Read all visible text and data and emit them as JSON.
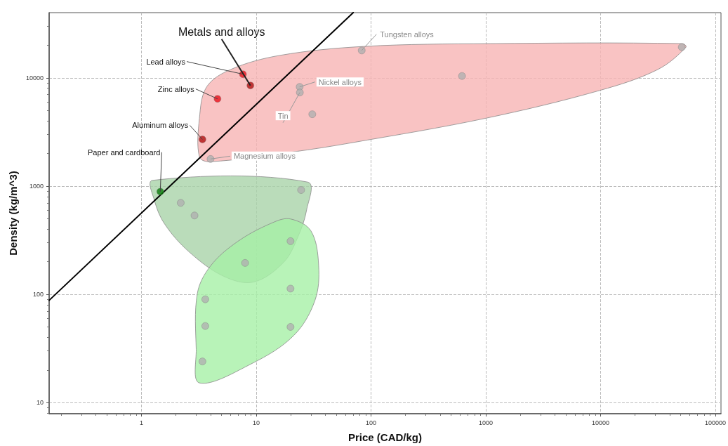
{
  "chart_data": {
    "type": "scatter",
    "xlabel": "Price (CAD/kg)",
    "ylabel": "Density (kg/m^3)",
    "log": "xy",
    "grid": true,
    "xlim": [
      0.157,
      112000
    ],
    "xticks": [
      1,
      10,
      100,
      1000,
      10000,
      100000
    ],
    "ylim": [
      7.9,
      40000
    ],
    "yticks": [
      10,
      100,
      1000,
      10000
    ],
    "series": [
      {
        "type": "area",
        "marker": "none",
        "color": "#f8b4b4",
        "x": [
          51600,
          1090,
          87,
          16,
          6.0,
          3.7,
          3.2,
          3.2,
          3.96,
          21,
          66,
          986,
          9860,
          31600,
          55500
        ],
        "values": [
          20700,
          20700,
          19500,
          16100,
          11950,
          8250,
          4220,
          1860,
          1680,
          2070,
          2500,
          4220,
          7650,
          11950,
          19200
        ]
      },
      {
        "type": "area",
        "marker": "none",
        "color": "#a9d3a9",
        "x": [
          1.25,
          28,
          27.5,
          22.9,
          17.3,
          9.5,
          5.2,
          2.6,
          1.59,
          1.29
        ],
        "values": [
          1130,
          1090,
          603,
          333,
          197,
          130,
          147,
          247,
          448,
          753
        ]
      },
      {
        "type": "area",
        "marker": "none",
        "color": "#a6f0a6",
        "x": [
          19.9,
          30,
          35,
          32.5,
          21.3,
          9.2,
          3.2,
          3.0,
          3.07,
          4.0,
          6.9,
          14
        ],
        "values": [
          497,
          385,
          185,
          88,
          41.8,
          23,
          15.2,
          31,
          102,
          183,
          308,
          461
        ]
      },
      {
        "type": "line",
        "color": "#000000",
        "marker": "none",
        "line_style": "solid",
        "x": [
          0.157,
          70
        ],
        "values": [
          88,
          40000
        ]
      },
      {
        "marker": "circle",
        "x": [
          7.66,
          8.9,
          4.6,
          3.4,
          4.0,
          23.9,
          24,
          30.8,
          83,
          621,
          51000,
          1.46,
          2.2,
          2.9,
          24.6,
          8.0,
          19.9,
          19.9,
          19.9,
          3.6,
          3.6,
          3.4
        ],
        "values": [
          10800,
          8500,
          6400,
          2700,
          1780,
          8250,
          7320,
          4610,
          17900,
          10400,
          19200,
          890,
          700,
          535,
          920,
          195,
          310,
          113,
          50,
          90,
          51,
          24
        ],
        "colors": [
          "#e8101a",
          "#b01010",
          "#e8101a",
          "#b01010",
          "#b0b0b0",
          "#b0b0b0",
          "#b0b0b0",
          "#b0b0b0",
          "#b0b0b0",
          "#b0b0b0",
          "#b0b0b0",
          "#0a7a0a",
          "#b0b0b0",
          "#b0b0b0",
          "#b0b0b0",
          "#b0b0b0",
          "#b0b0b0",
          "#b0b0b0",
          "#b0b0b0",
          "#b0b0b0",
          "#b0b0b0",
          "#b0b0b0"
        ]
      }
    ],
    "annotations": [
      {
        "text": "Metals and alloys",
        "x": 8.9,
        "y": 8500
      },
      {
        "text": "Lead alloys",
        "x": 7.66,
        "y": 10800
      },
      {
        "text": "Zinc alloys",
        "x": 4.6,
        "y": 6400
      },
      {
        "text": "Aluminum alloys",
        "x": 3.4,
        "y": 2700
      },
      {
        "text": "Paper and cardboard",
        "x": 1.46,
        "y": 890
      },
      {
        "text": "Tungsten alloys",
        "x": 83,
        "y": 17900
      },
      {
        "text": "Nickel alloys",
        "x": 23.9,
        "y": 8250
      },
      {
        "text": "Tin",
        "x": 24,
        "y": 7320
      },
      {
        "text": "Magnesium alloys",
        "x": 4.0,
        "y": 1780
      }
    ]
  }
}
